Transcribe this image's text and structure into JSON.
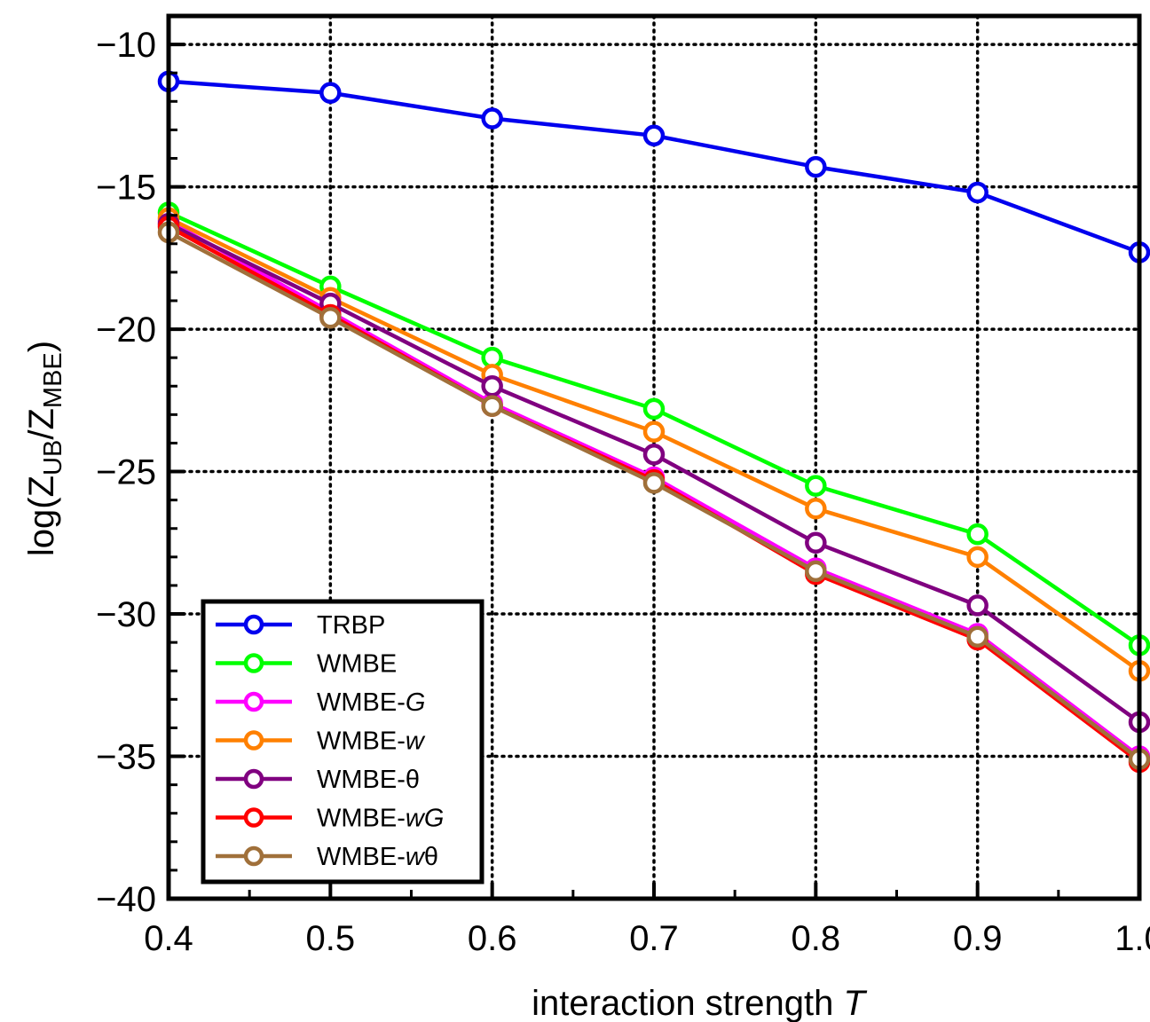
{
  "chart_data": {
    "type": "line",
    "x": [
      0.4,
      0.5,
      0.6,
      0.7,
      0.8,
      0.9,
      1.0
    ],
    "x_tick_labels": [
      "0.4",
      "0.5",
      "0.6",
      "0.7",
      "0.8",
      "0.9",
      "1.0"
    ],
    "y_tick_values": [
      -40,
      -35,
      -30,
      -25,
      -20,
      -15,
      -10
    ],
    "y_tick_labels": [
      "−40",
      "−35",
      "−30",
      "−25",
      "−20",
      "−15",
      "−10"
    ],
    "xlim": [
      0.4,
      1.0
    ],
    "ylim": [
      -40,
      -9
    ],
    "xlabel": {
      "main": "interaction strength ",
      "italic": "T"
    },
    "ylabel": {
      "prefix": "log(Z",
      "sub1": "UB",
      "mid": "/Z",
      "sub2": "MBE",
      "suffix": ")"
    },
    "grid": true,
    "legend_position": "bottom-left",
    "series": [
      {
        "name": "TRBP",
        "name_parts": [
          {
            "text": "TRBP",
            "italic": false
          }
        ],
        "color": "#0000ee",
        "values": [
          -11.3,
          -11.7,
          -12.6,
          -13.2,
          -14.3,
          -15.2,
          -17.3
        ]
      },
      {
        "name": "WMBE",
        "name_parts": [
          {
            "text": "WMBE",
            "italic": false
          }
        ],
        "color": "#00ff00",
        "values": [
          -15.9,
          -18.5,
          -21.0,
          -22.8,
          -25.5,
          -27.2,
          -31.1
        ]
      },
      {
        "name": "WMBE-G",
        "name_parts": [
          {
            "text": "WMBE-",
            "italic": false
          },
          {
            "text": "G",
            "italic": true
          }
        ],
        "color": "#ff00ff",
        "values": [
          -16.2,
          -19.4,
          -22.6,
          -25.2,
          -28.4,
          -30.7,
          -35.0
        ]
      },
      {
        "name": "WMBE-w",
        "name_parts": [
          {
            "text": "WMBE-",
            "italic": false
          },
          {
            "text": "w",
            "italic": true
          }
        ],
        "color": "#ff8000",
        "values": [
          -16.1,
          -18.9,
          -21.6,
          -23.6,
          -26.3,
          -28.0,
          -32.0
        ]
      },
      {
        "name": "WMBE-θ",
        "name_parts": [
          {
            "text": "WMBE-θ",
            "italic": false
          }
        ],
        "color": "#800080",
        "values": [
          -16.3,
          -19.1,
          -22.0,
          -24.4,
          -27.5,
          -29.7,
          -33.8
        ]
      },
      {
        "name": "WMBE-wG",
        "name_parts": [
          {
            "text": "WMBE-",
            "italic": false
          },
          {
            "text": "wG",
            "italic": true
          }
        ],
        "color": "#ff0000",
        "values": [
          -16.4,
          -19.5,
          -22.7,
          -25.3,
          -28.6,
          -30.9,
          -35.2
        ]
      },
      {
        "name": "WMBE-wθ",
        "name_parts": [
          {
            "text": "WMBE-",
            "italic": false
          },
          {
            "text": "w",
            "italic": true
          },
          {
            "text": "θ",
            "italic": false
          }
        ],
        "color": "#a0703a",
        "values": [
          -16.6,
          -19.6,
          -22.7,
          -25.4,
          -28.5,
          -30.8,
          -35.1
        ]
      }
    ]
  }
}
